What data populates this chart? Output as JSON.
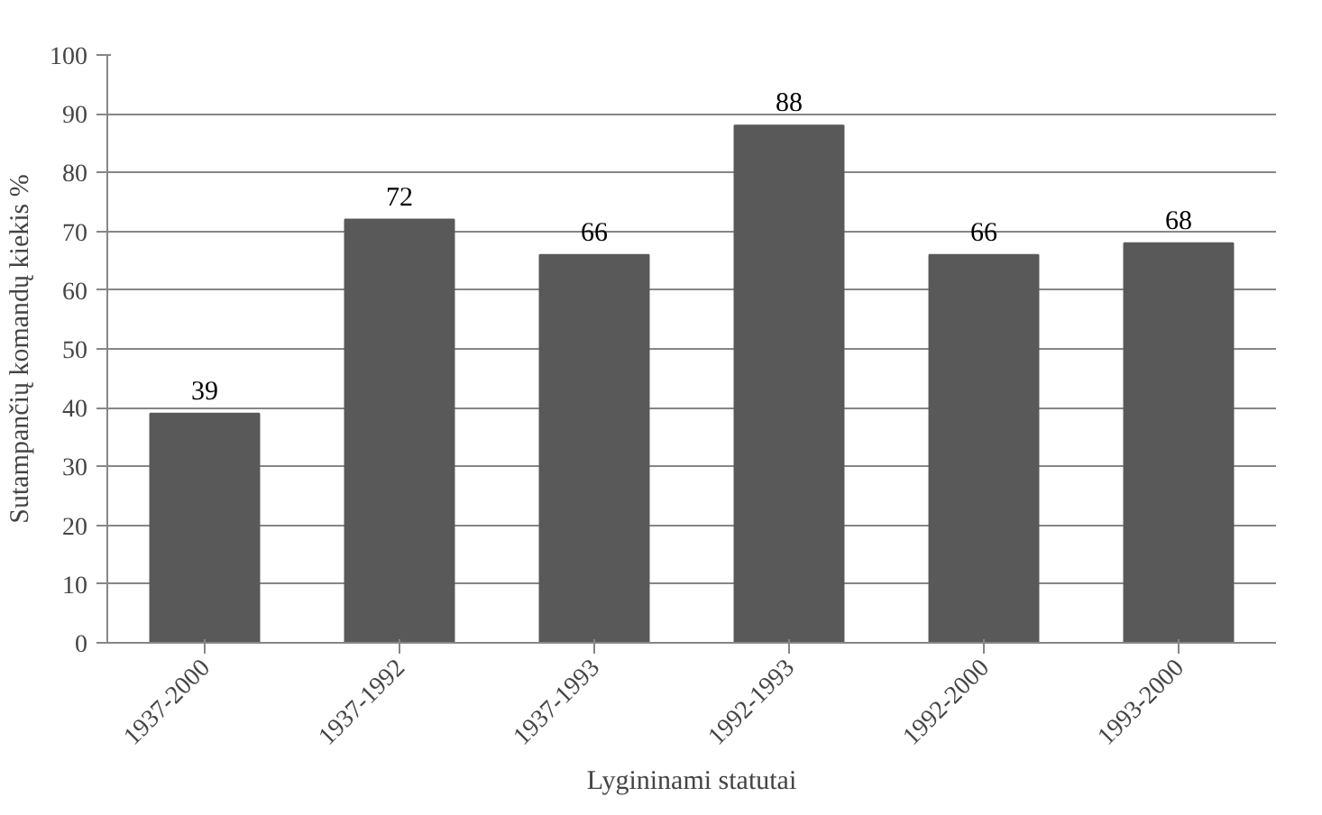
{
  "chart_data": {
    "type": "bar",
    "xlabel": "Lygininami statutai",
    "ylabel": "Sutampančių komandų kiekis %",
    "categories": [
      "1937-2000",
      "1937-1992",
      "1937-1993",
      "1992-1993",
      "1992-2000",
      "1993-2000"
    ],
    "values": [
      39,
      72,
      66,
      88,
      66,
      68
    ],
    "color": "#595959",
    "ylim": [
      0,
      100
    ],
    "yticks": [
      0,
      10,
      20,
      30,
      40,
      50,
      60,
      70,
      80,
      90,
      100
    ],
    "grid": "y",
    "data_labels": true
  }
}
